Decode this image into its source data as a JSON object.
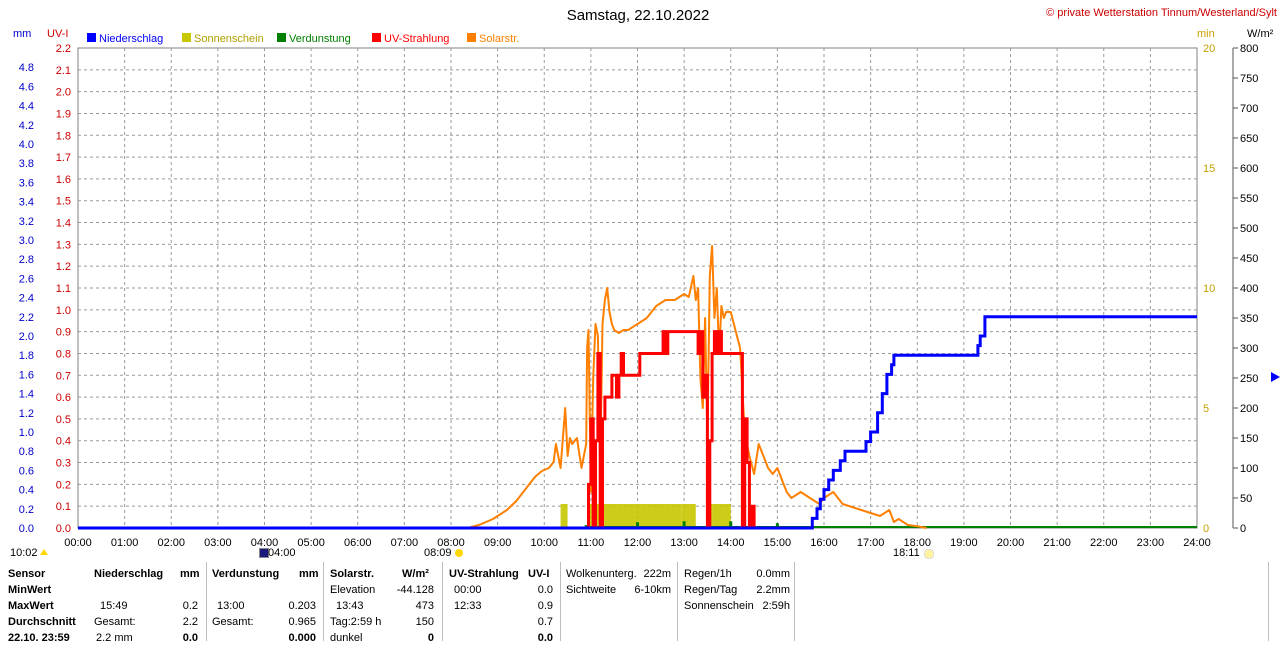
{
  "chart_data": {
    "type": "line",
    "title": "Samstag, 22.10.2022",
    "credit": "© private Wetterstation Tinnum/Westerland/Sylt",
    "legend": [
      {
        "name": "Niederschlag",
        "color": "#0000ff"
      },
      {
        "name": "Sonnenschein",
        "color": "#c8c800"
      },
      {
        "name": "Verdunstung",
        "color": "#008000"
      },
      {
        "name": "UV-Strahlung",
        "color": "#ff0000"
      },
      {
        "name": "Solarstr.",
        "color": "#ff8000"
      }
    ],
    "legend_placement": "top-left",
    "grid": true,
    "xlim": [
      "00:00",
      "24:00"
    ],
    "x_ticks": [
      "00:00",
      "01:00",
      "02:00",
      "03:00",
      "04:00",
      "05:00",
      "06:00",
      "07:00",
      "08:00",
      "09:00",
      "10:00",
      "11:00",
      "12:00",
      "13:00",
      "14:00",
      "15:00",
      "16:00",
      "17:00",
      "18:00",
      "19:00",
      "20:00",
      "21:00",
      "22:00",
      "23:00",
      "24:00"
    ],
    "axes": {
      "mm": {
        "label": "mm",
        "lim": [
          0,
          5.0
        ],
        "ticks": [
          "0.0",
          "0.2",
          "0.4",
          "0.6",
          "0.8",
          "1.0",
          "1.2",
          "1.4",
          "1.6",
          "1.8",
          "2.0",
          "2.2",
          "2.4",
          "2.6",
          "2.8",
          "3.0",
          "3.2",
          "3.4",
          "3.6",
          "3.8",
          "4.0",
          "4.2",
          "4.4",
          "4.6",
          "4.8"
        ],
        "color": "#0000ff"
      },
      "uv": {
        "label": "UV-I",
        "lim": [
          0,
          2.2
        ],
        "ticks": [
          "0.0",
          "0.1",
          "0.2",
          "0.3",
          "0.4",
          "0.5",
          "0.6",
          "0.7",
          "0.8",
          "0.9",
          "1.0",
          "1.1",
          "1.2",
          "1.3",
          "1.4",
          "1.5",
          "1.6",
          "1.7",
          "1.8",
          "1.9",
          "2.0",
          "2.1",
          "2.2"
        ],
        "color": "#ff0000"
      },
      "min": {
        "label": "min",
        "lim": [
          0,
          20
        ],
        "ticks": [
          "0",
          "5",
          "10",
          "15",
          "20"
        ],
        "color": "#c8a000"
      },
      "wm2": {
        "label": "W/m²",
        "lim": [
          0,
          800
        ],
        "ticks": [
          "0",
          "50",
          "100",
          "150",
          "200",
          "250",
          "300",
          "350",
          "400",
          "450",
          "500",
          "550",
          "600",
          "650",
          "700",
          "750",
          "800"
        ],
        "color": "#000000"
      }
    },
    "series": [
      {
        "name": "Niederschlag",
        "axis": "mm",
        "unit": "mm",
        "x": [
          0,
          15.75,
          15.75,
          15.85,
          15.92,
          16.0,
          16.1,
          16.2,
          16.35,
          16.45,
          16.9,
          17.0,
          17.15,
          17.25,
          17.35,
          17.45,
          17.5,
          19.3,
          19.35,
          19.45,
          24.0
        ],
        "y": [
          0.0,
          0.0,
          0.1,
          0.2,
          0.3,
          0.4,
          0.5,
          0.6,
          0.7,
          0.8,
          0.9,
          1.0,
          1.2,
          1.4,
          1.6,
          1.7,
          1.8,
          1.9,
          2.0,
          2.2,
          2.2
        ]
      },
      {
        "name": "UV-Strahlung",
        "axis": "uv",
        "unit": "UV-I",
        "x": [
          10.9,
          10.95,
          11.0,
          11.05,
          11.1,
          11.15,
          11.2,
          11.25,
          11.3,
          11.4,
          11.45,
          11.55,
          11.6,
          11.65,
          11.7,
          12.0,
          12.05,
          12.5,
          12.55,
          12.6,
          12.65,
          12.7,
          13.0,
          13.2,
          13.3,
          13.35,
          13.4,
          13.45,
          13.5,
          13.55,
          13.6,
          13.65,
          13.7,
          13.75,
          13.8,
          13.85,
          13.9,
          14.2,
          14.25,
          14.3,
          14.35,
          14.4,
          14.45,
          14.5
        ],
        "y": [
          0.0,
          0.2,
          0.5,
          0.0,
          0.4,
          0.8,
          0.0,
          0.5,
          0.6,
          0.6,
          0.7,
          0.6,
          0.7,
          0.8,
          0.7,
          0.7,
          0.8,
          0.8,
          0.9,
          0.8,
          0.9,
          0.9,
          0.9,
          0.9,
          0.8,
          0.9,
          0.6,
          0.7,
          0.0,
          0.4,
          0.8,
          0.9,
          0.8,
          0.9,
          0.8,
          0.8,
          0.8,
          0.8,
          0.0,
          0.5,
          0.3,
          0.0,
          0.1,
          0.0
        ]
      },
      {
        "name": "Solarstr.",
        "axis": "wm2",
        "unit": "W/m²",
        "x": [
          8.35,
          8.6,
          8.9,
          9.2,
          9.4,
          9.6,
          9.8,
          9.95,
          10.1,
          10.2,
          10.25,
          10.35,
          10.45,
          10.5,
          10.55,
          10.6,
          10.7,
          10.8,
          10.9,
          10.92,
          10.95,
          11.0,
          11.05,
          11.1,
          11.15,
          11.2,
          11.25,
          11.3,
          11.35,
          11.4,
          11.45,
          11.5,
          11.6,
          11.7,
          11.8,
          12.0,
          12.2,
          12.4,
          12.6,
          12.8,
          13.0,
          13.1,
          13.2,
          13.25,
          13.3,
          13.35,
          13.4,
          13.45,
          13.5,
          13.55,
          13.6,
          13.65,
          13.7,
          13.75,
          13.8,
          13.85,
          13.9,
          14.0,
          14.1,
          14.2,
          14.3,
          14.4,
          14.5,
          14.6,
          14.7,
          14.8,
          14.9,
          15.0,
          15.1,
          15.2,
          15.3,
          15.5,
          15.7,
          15.9,
          16.0,
          16.2,
          16.4,
          16.6,
          16.8,
          17.0,
          17.2,
          17.4,
          17.5,
          17.6,
          17.8,
          18.0,
          18.2
        ],
        "y": [
          0,
          5,
          15,
          30,
          45,
          65,
          85,
          95,
          100,
          110,
          140,
          100,
          200,
          120,
          150,
          140,
          150,
          100,
          140,
          300,
          330,
          60,
          250,
          340,
          320,
          100,
          340,
          380,
          400,
          360,
          340,
          330,
          325,
          330,
          330,
          340,
          350,
          370,
          380,
          380,
          390,
          385,
          420,
          380,
          400,
          250,
          200,
          350,
          150,
          420,
          470,
          350,
          400,
          290,
          370,
          350,
          360,
          360,
          330,
          300,
          160,
          120,
          90,
          140,
          120,
          100,
          90,
          100,
          80,
          60,
          50,
          60,
          50,
          40,
          50,
          60,
          40,
          35,
          30,
          25,
          20,
          30,
          10,
          15,
          5,
          3,
          0
        ]
      },
      {
        "name": "Sonnenschein",
        "axis": "min",
        "unit": "min",
        "x": [
          10.35,
          10.5,
          10.95,
          12.95,
          13.45,
          13.5,
          13.6,
          14.0
        ],
        "width_h": [
          0.15,
          0.05,
          2.0,
          0.3,
          0.05,
          0.1,
          0.4,
          0.0
        ],
        "y": [
          1,
          0,
          1,
          1,
          0,
          1,
          1,
          0
        ]
      },
      {
        "name": "Verdunstung",
        "axis": "mm",
        "unit": "mm",
        "x": [
          10.9,
          12.0,
          13.0,
          14.0,
          15.0,
          16.0,
          17.0,
          18.0,
          19.0,
          20.0,
          21.0,
          22.0,
          23.0
        ],
        "y": [
          0.03,
          0.06,
          0.07,
          0.07,
          0.05,
          0.02,
          0.01,
          0.01,
          0.01,
          0.01,
          0.01,
          0.01,
          0.01
        ]
      }
    ]
  },
  "sun": {
    "rise_time": "08:09",
    "set_time": "18:11",
    "day_marks": [
      {
        "time": "04:00",
        "label": "04:00"
      }
    ]
  },
  "corner_left": "10:02",
  "stats": {
    "sensor": {
      "h": "Sensor",
      "rows": [
        "MinWert",
        "MaxWert",
        "Durchschnitt",
        "22.10. 23:59"
      ]
    },
    "niederschlag": {
      "h": "Niederschlag",
      "unit": "mm",
      "rows": [
        [
          "",
          ""
        ],
        [
          "15:49",
          "0.2"
        ],
        [
          "Gesamt:",
          "2.2"
        ],
        [
          "2.2 mm",
          "0.0"
        ]
      ]
    },
    "verdunstung": {
      "h": "Verdunstung",
      "unit": "mm",
      "rows": [
        [
          "",
          ""
        ],
        [
          "13:00",
          "0.203"
        ],
        [
          "Gesamt:",
          "0.965"
        ],
        [
          "",
          "0.000"
        ]
      ]
    },
    "solar": {
      "h": "Solarstr.",
      "unit": "W/m²",
      "rows": [
        [
          "Elevation",
          "-44.128"
        ],
        [
          "13:43",
          "473"
        ],
        [
          "Tag:2:59 h",
          "150"
        ],
        [
          "dunkel",
          "0"
        ]
      ]
    },
    "uv": {
      "h": "UV-Strahlung",
      "unit": "UV-I",
      "rows": [
        [
          "00:00",
          "0.0"
        ],
        [
          "12:33",
          "0.9"
        ],
        [
          "",
          "0.7"
        ],
        [
          "",
          "0.0"
        ]
      ]
    },
    "wolken": {
      "rows": [
        [
          "Wolkenunterg.",
          "222m"
        ],
        [
          "Sichtweite",
          "6-10km"
        ]
      ]
    },
    "regen": {
      "rows": [
        [
          "Regen/1h",
          "0.0mm"
        ],
        [
          "Regen/Tag",
          "2.2mm"
        ],
        [
          "Sonnenschein",
          "2:59h"
        ]
      ]
    }
  }
}
